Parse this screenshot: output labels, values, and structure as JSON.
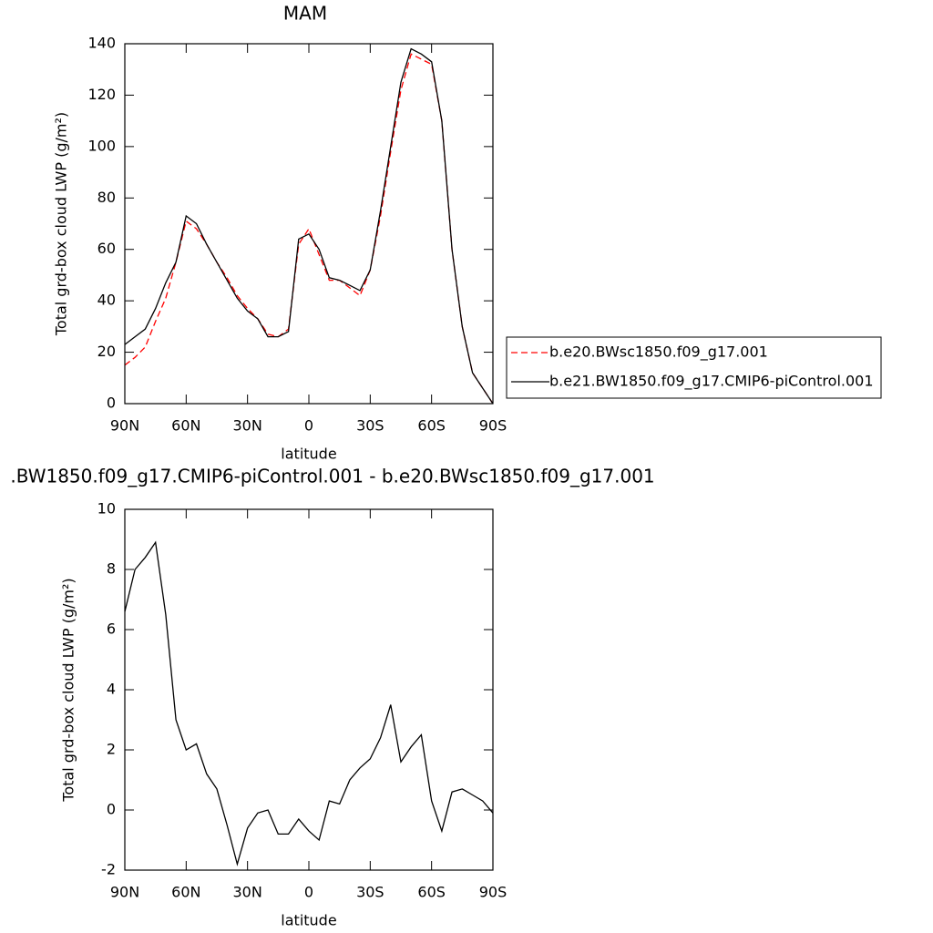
{
  "chart_data": [
    {
      "type": "line",
      "title": "MAM",
      "xlabel": "latitude",
      "ylabel": "Total grd-box cloud LWP (g/m²)",
      "x": [
        90,
        85,
        80,
        75,
        70,
        65,
        60,
        55,
        50,
        45,
        40,
        35,
        30,
        25,
        20,
        15,
        10,
        5,
        0,
        -5,
        -10,
        -15,
        -20,
        -25,
        -30,
        -35,
        -40,
        -45,
        -50,
        -55,
        -60,
        -65,
        -70,
        -75,
        -80,
        -85,
        -90
      ],
      "xlim": [
        90,
        -90
      ],
      "xticks": [
        {
          "value": 90,
          "label": "90N"
        },
        {
          "value": 60,
          "label": "60N"
        },
        {
          "value": 30,
          "label": "30N"
        },
        0,
        {
          "value": -30,
          "label": "30S"
        },
        {
          "value": -60,
          "label": "60S"
        },
        {
          "value": -90,
          "label": "90S"
        }
      ],
      "ylim": [
        0,
        140
      ],
      "yticks": [
        0,
        20,
        40,
        60,
        80,
        100,
        120,
        140
      ],
      "legend": "right",
      "series": [
        {
          "name": "b.e20.BWsc1850.f09_g17.001",
          "color": "#ff0000",
          "linestyle": "dashed",
          "values": [
            15,
            18,
            22,
            32,
            41,
            55,
            71,
            68,
            62,
            55,
            49,
            42,
            37,
            33,
            27,
            26,
            29,
            62,
            68,
            58,
            48,
            48,
            45,
            42,
            52,
            73,
            98,
            122,
            136,
            134,
            132,
            110,
            60,
            30,
            12,
            6,
            0
          ]
        },
        {
          "name": "b.e21.BW1850.f09_g17.CMIP6-piControl.001",
          "color": "#000000",
          "linestyle": "solid",
          "values": [
            23,
            26,
            29,
            37,
            47,
            55,
            73,
            70,
            62,
            55,
            48,
            41,
            36,
            33,
            26,
            26,
            28,
            64,
            66,
            60,
            49,
            48,
            46,
            44,
            52,
            75,
            100,
            125,
            138,
            136,
            133,
            110,
            60,
            30,
            12,
            6,
            0
          ]
        }
      ]
    },
    {
      "type": "line",
      "title": ".BW1850.f09_g17.CMIP6-piControl.001 - b.e20.BWsc1850.f09_g17.001",
      "xlabel": "latitude",
      "ylabel": "Total grd-box cloud LWP (g/m²)",
      "x": [
        90,
        85,
        80,
        75,
        70,
        65,
        60,
        55,
        50,
        45,
        40,
        35,
        30,
        25,
        20,
        15,
        10,
        5,
        0,
        -5,
        -10,
        -15,
        -20,
        -25,
        -30,
        -35,
        -40,
        -45,
        -50,
        -55,
        -60,
        -65,
        -70,
        -75,
        -80,
        -85,
        -90
      ],
      "xlim": [
        90,
        -90
      ],
      "xticks": [
        {
          "value": 90,
          "label": "90N"
        },
        {
          "value": 60,
          "label": "60N"
        },
        {
          "value": 30,
          "label": "30N"
        },
        0,
        {
          "value": -30,
          "label": "30S"
        },
        {
          "value": -60,
          "label": "60S"
        },
        {
          "value": -90,
          "label": "90S"
        }
      ],
      "ylim": [
        -2,
        10
      ],
      "yticks": [
        -2,
        0,
        2,
        4,
        6,
        8,
        10
      ],
      "series": [
        {
          "color": "#000000",
          "linestyle": "solid",
          "values": [
            6.6,
            8.0,
            8.4,
            8.9,
            6.5,
            3.0,
            2.0,
            2.2,
            1.2,
            0.7,
            -0.5,
            -1.8,
            -0.6,
            -0.1,
            0.0,
            -0.8,
            -0.8,
            -0.3,
            -0.7,
            -1.0,
            0.3,
            0.2,
            1.0,
            1.4,
            1.7,
            2.4,
            3.5,
            1.6,
            2.1,
            2.5,
            0.3,
            -0.7,
            0.6,
            0.7,
            0.5,
            0.3,
            -0.1
          ]
        }
      ]
    }
  ]
}
